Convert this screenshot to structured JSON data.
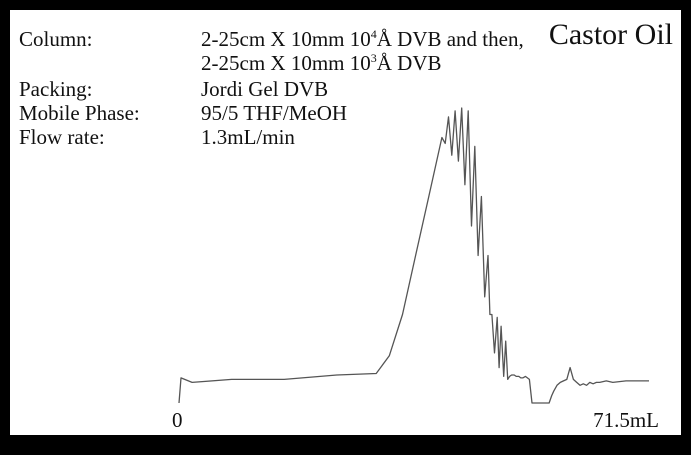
{
  "chart_data": {
    "type": "line",
    "title": "Castor Oil",
    "xlabel": "",
    "ylabel": "",
    "xlim": [
      0,
      71.5
    ],
    "ylim": [
      0,
      1
    ],
    "x_tick_labels": [
      "0",
      "71.5mL"
    ],
    "grid": false,
    "legend": "none",
    "line_color": "#555555",
    "series": [
      {
        "x": [
          0,
          0.3,
          2,
          8,
          16,
          24,
          30,
          32,
          34,
          36,
          38,
          40,
          40.5,
          41,
          41.5,
          42,
          42.5,
          43,
          43.5,
          44,
          44.5,
          45,
          45.5,
          46,
          46.5,
          47,
          47.3,
          47.6,
          48,
          48.4,
          48.7,
          49,
          49.4,
          49.7,
          50,
          50.3,
          50.6,
          51,
          51.3,
          51.7,
          52,
          52.3,
          52.7,
          53,
          53.3,
          53.7,
          54,
          54.5,
          55,
          55.5,
          56,
          56.3,
          56.7,
          57,
          57.5,
          58,
          58.5,
          59,
          59.5,
          60,
          60.5,
          61,
          61.5,
          62,
          62.5,
          63,
          63.5,
          64,
          65,
          66,
          68,
          71.5
        ],
        "y": [
          0,
          0.085,
          0.07,
          0.08,
          0.08,
          0.095,
          0.1,
          0.16,
          0.3,
          0.5,
          0.7,
          0.9,
          0.88,
          0.97,
          0.84,
          0.99,
          0.82,
          1.0,
          0.74,
          0.99,
          0.6,
          0.87,
          0.5,
          0.7,
          0.36,
          0.5,
          0.3,
          0.3,
          0.17,
          0.29,
          0.12,
          0.26,
          0.09,
          0.21,
          0.08,
          0.09,
          0.095,
          0.095,
          0.09,
          0.09,
          0.085,
          0.085,
          0.09,
          0.085,
          0.08,
          0.0,
          0.0,
          0.0,
          0.0,
          0.0,
          0.0,
          0.0,
          0.025,
          0.04,
          0.06,
          0.07,
          0.075,
          0.08,
          0.12,
          0.08,
          0.07,
          0.06,
          0.065,
          0.06,
          0.07,
          0.065,
          0.07,
          0.07,
          0.075,
          0.07,
          0.075,
          0.075
        ]
      }
    ]
  },
  "title": "Castor Oil",
  "info": {
    "column_label": "Column:",
    "column_line1_a": "2-25cm X 10mm 10",
    "column_line1_sup": "4",
    "column_line1_b": "Å DVB and then,",
    "column_line2_a": "2-25cm X 10mm 10",
    "column_line2_sup": "3",
    "column_line2_b": "Å DVB",
    "packing_label": "Packing:",
    "packing_value": "Jordi Gel DVB",
    "mobile_label": "Mobile Phase:",
    "mobile_value": "95/5 THF/MeOH",
    "flow_label": "Flow rate:",
    "flow_value": "1.3mL/min"
  },
  "axis": {
    "x_start": "0",
    "x_end": "71.5mL"
  }
}
